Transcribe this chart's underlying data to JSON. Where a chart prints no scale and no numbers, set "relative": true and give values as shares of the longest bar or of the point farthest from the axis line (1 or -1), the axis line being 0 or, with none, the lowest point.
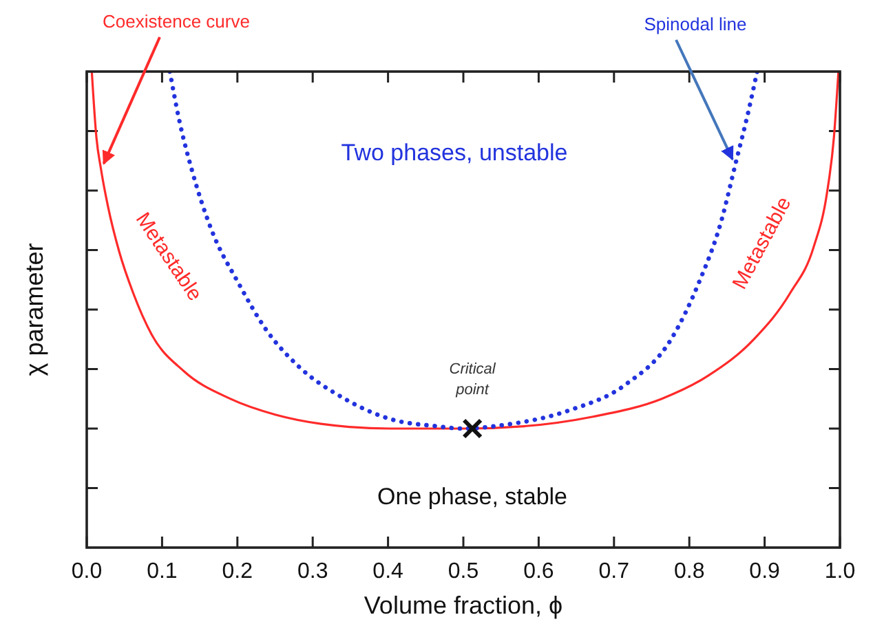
{
  "chart_data": {
    "type": "line",
    "relative": true,
    "xlabel": "Volume fraction, ϕ",
    "ylabel": "χ parameter",
    "xlim": [
      0,
      1
    ],
    "xticks": [
      {
        "value": 0,
        "label": "0.0"
      },
      0.1,
      0.2,
      0.3,
      0.4,
      0.5,
      0.6,
      0.7,
      0.8,
      0.9,
      {
        "value": 1,
        "label": "1.0"
      }
    ],
    "tick_labels": "x",
    "series": [
      {
        "name": "Coexistence curve",
        "color": "#ff2a2a",
        "line_style": "solid",
        "marker": "none",
        "x": [
          0.0067,
          0.0128,
          0.0189,
          0.028,
          0.0432,
          0.0616,
          0.086,
          0.1286,
          0.19,
          0.251,
          0.311,
          0.403,
          0.5,
          0.581,
          0.672,
          0.764,
          0.825,
          0.886,
          0.934,
          0.965,
          0.983,
          0.992,
          0.998
        ],
        "values": [
          1.0,
          0.862,
          0.795,
          0.718,
          0.621,
          0.535,
          0.448,
          0.371,
          0.313,
          0.279,
          0.26,
          0.25,
          0.25,
          0.255,
          0.275,
          0.313,
          0.361,
          0.438,
          0.535,
          0.631,
          0.747,
          0.862,
          1.0
        ]
      },
      {
        "name": "Spinodal line",
        "color": "#2233dd",
        "line_style": "dotted",
        "marker": "none",
        "x": [
          0.1103,
          0.1225,
          0.141,
          0.165,
          0.202,
          0.238,
          0.281,
          0.342,
          0.403,
          0.464,
          0.5,
          0.551,
          0.642,
          0.715,
          0.776,
          0.812,
          0.843,
          0.861,
          0.879,
          0.89
        ],
        "values": [
          1.0,
          0.9,
          0.785,
          0.67,
          0.554,
          0.458,
          0.381,
          0.313,
          0.27,
          0.255,
          0.25,
          0.257,
          0.289,
          0.342,
          0.438,
          0.554,
          0.689,
          0.804,
          0.92,
          1.0
        ]
      },
      {
        "type": "scatter",
        "color": "#111111",
        "marker": "cross",
        "x": [
          0.512
        ],
        "values": [
          0.25
        ]
      }
    ],
    "annotations": [
      {
        "text": "Critical point",
        "x": 0.512,
        "y": 0.25
      },
      "Metastable",
      "Metastable",
      "Two phases, unstable",
      "One phase, stable"
    ]
  }
}
